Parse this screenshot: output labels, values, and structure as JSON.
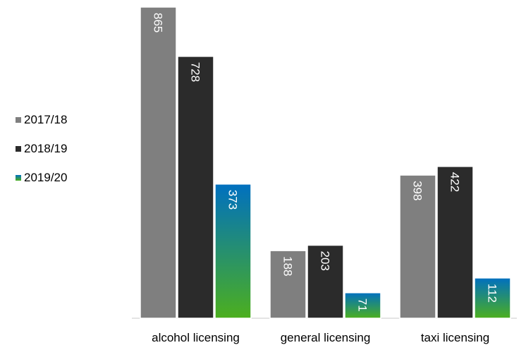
{
  "chart_data": {
    "type": "bar",
    "categories": [
      "alcohol licensing",
      "general licensing",
      "taxi licensing"
    ],
    "series": [
      {
        "name": "2017/18",
        "values": [
          865,
          188,
          398
        ],
        "color": "#7f7f7f"
      },
      {
        "name": "2018/19",
        "values": [
          728,
          203,
          422
        ],
        "color": "#2b2b2b"
      },
      {
        "name": "2019/20",
        "values": [
          373,
          71,
          112
        ],
        "color_top": "#0070c0",
        "color_bottom": "#4caf1e"
      }
    ],
    "value_labels": "rotated-90-inside-top",
    "legend_position": "left",
    "grid": false,
    "ylim": [
      0,
      865
    ]
  }
}
